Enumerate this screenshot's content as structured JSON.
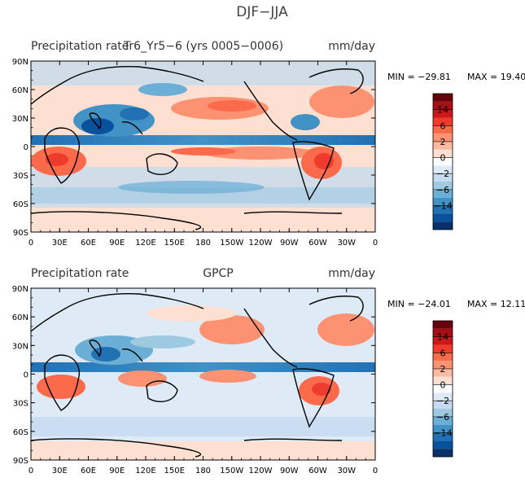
{
  "main_title": "DJF−JJA",
  "colorbar": {
    "labels": [
      "14",
      "6",
      "2",
      "0",
      "−2",
      "−6",
      "−14"
    ],
    "colors": [
      "#67000d",
      "#a50f15",
      "#cb181d",
      "#ef3b2c",
      "#fb6a4a",
      "#fc9272",
      "#fcbba1",
      "#fee0d2",
      "#ffffff",
      "#deebf7",
      "#c6dbef",
      "#9ecae1",
      "#6baed6",
      "#4292c6",
      "#2171b5",
      "#08519c",
      "#08306b"
    ]
  },
  "chart_data": [
    {
      "type": "heatmap",
      "left_title": "Precipitation rate",
      "center_title": "Tr6_Yr5−6 (yrs 0005−0006)",
      "units": "mm/day",
      "min_label": "MIN = −29.81",
      "max_label": "MAX =  19.40",
      "min_value": -29.81,
      "max_value": 19.4,
      "x_ticks": [
        "0",
        "30E",
        "60E",
        "90E",
        "120E",
        "150E",
        "180",
        "150W",
        "120W",
        "90W",
        "60W",
        "30W",
        "0"
      ],
      "y_ticks": [
        "90N",
        "60N",
        "30N",
        "0",
        "30S",
        "60S",
        "90S"
      ],
      "xlim": [
        0,
        360
      ],
      "ylim": [
        -90,
        90
      ]
    },
    {
      "type": "heatmap",
      "left_title": "Precipitation rate",
      "center_title": "GPCP",
      "units": "mm/day",
      "min_label": "MIN = −24.01",
      "max_label": "MAX =  12.11",
      "min_value": -24.01,
      "max_value": 12.11,
      "x_ticks": [
        "0",
        "30E",
        "60E",
        "90E",
        "120E",
        "150E",
        "180",
        "150W",
        "120W",
        "90W",
        "60W",
        "30W",
        "0"
      ],
      "y_ticks": [
        "90N",
        "60N",
        "30N",
        "0",
        "30S",
        "60S",
        "90S"
      ],
      "xlim": [
        0,
        360
      ],
      "ylim": [
        -90,
        90
      ]
    }
  ]
}
